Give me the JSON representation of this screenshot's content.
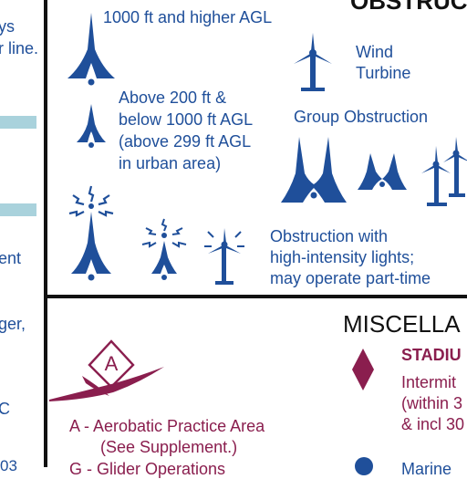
{
  "colors": {
    "obstruction_blue": "#1f4f9a",
    "misc_maroon": "#8a1e4e",
    "band_blue": "#a9d2dc",
    "rule_black": "#111111"
  },
  "left_column": {
    "fragments": [
      "ys",
      "r line.",
      "ent",
      "ger,",
      "C",
      "03"
    ]
  },
  "obstruction": {
    "heading": "OBSTRUC",
    "items": {
      "tall": {
        "label": "1000 ft and higher AGL",
        "icon": "tall-obstruction-icon"
      },
      "wind": {
        "label_line1": "Wind",
        "label_line2": "Turbine",
        "icon": "wind-turbine-icon"
      },
      "mid": {
        "label_line1": "Above 200 ft &",
        "label_line2": "below 1000 ft AGL",
        "label_line3": "(above 299 ft AGL",
        "label_line4": "in urban area)",
        "icon": "obstruction-icon"
      },
      "group": {
        "label": "Group Obstruction",
        "icon": "group-obstruction-icon"
      },
      "lights": {
        "label_line1": "Obstruction with",
        "label_line2": "high-intensity lights;",
        "label_line3": "may operate part-time",
        "icon": "lighted-obstruction-icon"
      }
    }
  },
  "miscellaneous": {
    "heading": "MISCELLA",
    "aerobatic": {
      "glyph": "A",
      "label_line1": "A - Aerobatic Practice Area",
      "label_line2": "(See Supplement.)",
      "icon": "aerobatic-practice-area-icon"
    },
    "glider_fragment": "G - Glider Operations",
    "stadium": {
      "label": "STADIU",
      "line1": "Intermit",
      "line2": "(within 3",
      "line3": "& incl 30",
      "icon": "stadium-diamond-icon"
    },
    "marine_fragment": "Marine"
  }
}
